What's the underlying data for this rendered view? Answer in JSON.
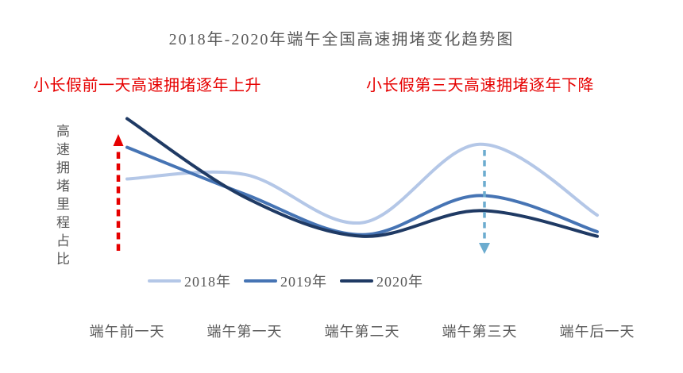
{
  "page": {
    "background": "#ffffff"
  },
  "title": {
    "text": "2018年-2020年端午全国高速拥堵变化趋势图",
    "color": "#595959"
  },
  "annotations": {
    "left": {
      "text": "小长假前一天高速拥堵逐年上升"
    },
    "right": {
      "text": "小长假第三天高速拥堵逐年下降"
    },
    "color": "#e60000"
  },
  "y_axis": {
    "label": "高速拥堵里程占比",
    "color": "#595959"
  },
  "colors": {
    "text_gray": "#595959",
    "annotation_red": "#e60000",
    "arrow_red": "#e60000",
    "arrow_teal": "#6caccf",
    "series_2018": "#b4c7e7",
    "series_2019": "#4674b4",
    "series_2020": "#1f3a64"
  },
  "chart_data": {
    "type": "line",
    "title": "2018年-2020年端午全国高速拥堵变化趋势图",
    "categories": [
      "端午前一天",
      "端午第一天",
      "端午第二天",
      "端午第三天",
      "端午后一天"
    ],
    "series": [
      {
        "name": "2018年",
        "color": "#b4c7e7",
        "values": [
          55,
          58,
          26,
          78,
          31
        ]
      },
      {
        "name": "2019年",
        "color": "#4674b4",
        "values": [
          76,
          45,
          18,
          44,
          20
        ]
      },
      {
        "name": "2020年",
        "color": "#1f3a64",
        "values": [
          95,
          43,
          17,
          34,
          17
        ]
      }
    ],
    "xlabel": "",
    "ylabel": "高速拥堵里程占比",
    "ylim": [
      0,
      100
    ],
    "y_ticks_visible": false,
    "grid": false,
    "line_style": "smooth",
    "legend_position": "bottom-center",
    "markers": [
      {
        "type": "dashed-arrow-up",
        "category": "端午前一天",
        "color": "#e60000"
      },
      {
        "type": "dashed-arrow-down",
        "category": "端午第三天",
        "color": "#6caccf"
      }
    ]
  }
}
